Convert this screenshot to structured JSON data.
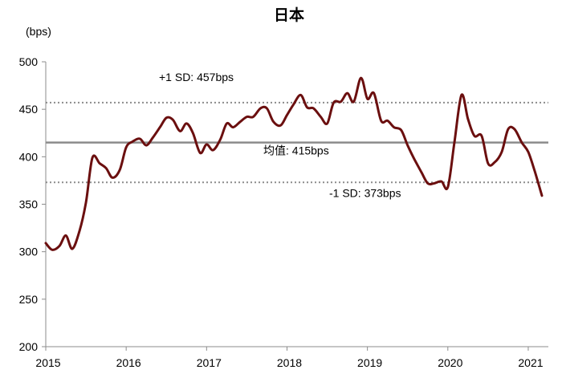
{
  "chart_data": {
    "type": "line",
    "title": "日本",
    "ylabel": "(bps)",
    "xlabel": "",
    "ylim": [
      200,
      500
    ],
    "yticks": [
      200,
      250,
      300,
      350,
      400,
      450,
      500
    ],
    "xlim": [
      2015.0,
      2021.25
    ],
    "xticks": [
      2015,
      2016,
      2017,
      2018,
      2019,
      2020,
      2021
    ],
    "grid": false,
    "legend": "none",
    "colors": {
      "series": "#6b0f0f",
      "mean": "#8c8c8c",
      "sd": "#8c8c8c"
    },
    "reference_lines": [
      {
        "label": "+1 SD:   457bps",
        "value": 457,
        "style": "dotted"
      },
      {
        "label": "均值: 415bps",
        "value": 415,
        "style": "solid"
      },
      {
        "label": "-1 SD:   373bps",
        "value": 373,
        "style": "dotted"
      }
    ],
    "series": [
      {
        "x": [
          2015.0,
          2015.08,
          2015.17,
          2015.25,
          2015.33,
          2015.42,
          2015.5,
          2015.58,
          2015.67,
          2015.75,
          2015.83,
          2015.92,
          2016.0,
          2016.08,
          2016.17,
          2016.25,
          2016.33,
          2016.42,
          2016.5,
          2016.58,
          2016.67,
          2016.75,
          2016.83,
          2016.92,
          2017.0,
          2017.08,
          2017.17,
          2017.25,
          2017.33,
          2017.42,
          2017.5,
          2017.58,
          2017.67,
          2017.75,
          2017.83,
          2017.92,
          2018.0,
          2018.08,
          2018.17,
          2018.25,
          2018.33,
          2018.42,
          2018.5,
          2018.58,
          2018.67,
          2018.75,
          2018.83,
          2018.92,
          2019.0,
          2019.08,
          2019.17,
          2019.25,
          2019.33,
          2019.42,
          2019.5,
          2019.58,
          2019.67,
          2019.75,
          2019.83,
          2019.92,
          2020.0,
          2020.08,
          2020.17,
          2020.25,
          2020.33,
          2020.42,
          2020.5,
          2020.58,
          2020.67,
          2020.75,
          2020.83,
          2020.92,
          2021.0,
          2021.08,
          2021.17
        ],
        "values": [
          309,
          302,
          306,
          317,
          303,
          322,
          352,
          399,
          393,
          388,
          378,
          386,
          410,
          416,
          419,
          412,
          420,
          431,
          441,
          439,
          427,
          435,
          425,
          404,
          413,
          407,
          418,
          435,
          431,
          437,
          442,
          442,
          451,
          451,
          437,
          433,
          444,
          455,
          465,
          452,
          451,
          442,
          435,
          457,
          458,
          467,
          458,
          483,
          461,
          467,
          438,
          438,
          431,
          428,
          412,
          398,
          384,
          372,
          372,
          374,
          368,
          414,
          465,
          440,
          422,
          422,
          393,
          394,
          405,
          429,
          429,
          415,
          405,
          385,
          359
        ]
      }
    ]
  }
}
